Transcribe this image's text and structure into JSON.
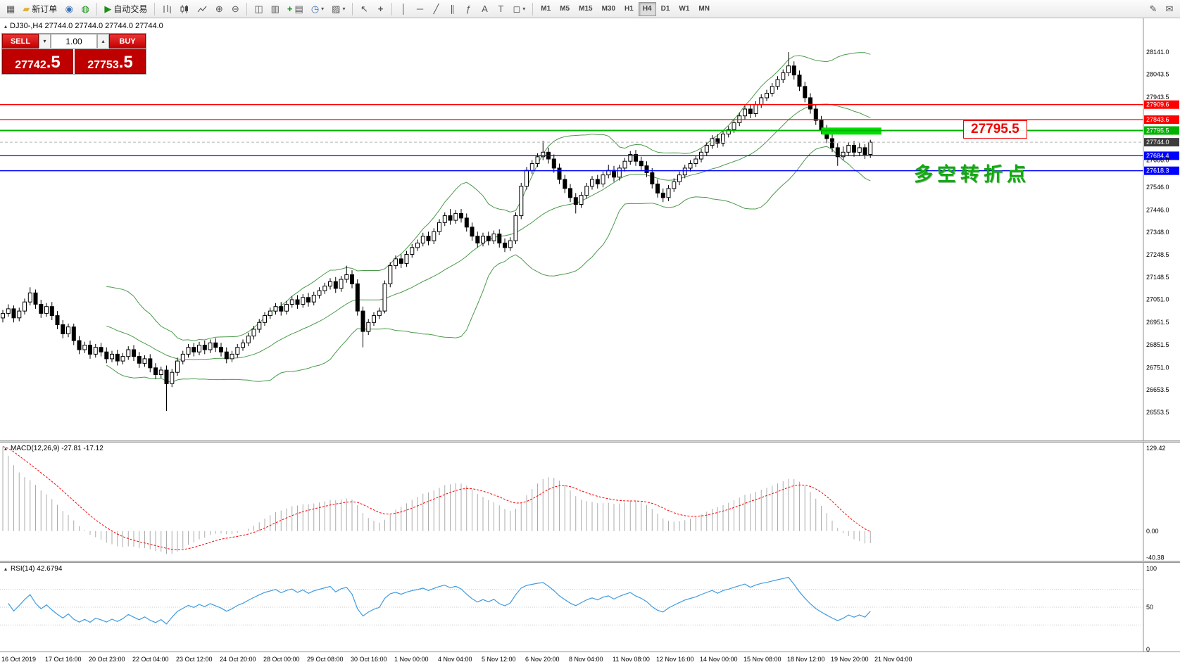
{
  "toolbar": {
    "new_order_label": "新订单",
    "auto_trading_label": "自动交易",
    "timeframes": [
      "M1",
      "M5",
      "M15",
      "M30",
      "H1",
      "H4",
      "D1",
      "W1",
      "MN"
    ],
    "active_timeframe": "H4",
    "text_tool_label": "A",
    "label_tool_label": "T",
    "fibo_tool_label": "ƒ"
  },
  "symbol_header": {
    "text": "DJ30-,H4  27744.0 27744.0 27744.0 27744.0"
  },
  "trade_panel": {
    "sell_label": "SELL",
    "buy_label": "BUY",
    "volume": "1.00",
    "sell_price_main": "27742",
    "sell_price_frac": ".5",
    "buy_price_main": "27753",
    "buy_price_frac": ".5"
  },
  "annotations": {
    "callout_price": "27795.5",
    "turning_point_label": "多空转折点"
  },
  "indicators": {
    "macd_label": "MACD(12,26,9) -27.81 -17.12",
    "rsi_label": "RSI(14) 42.6794"
  },
  "axes": {
    "main_price_labels": [
      {
        "text": "28141.0",
        "kind": "plain"
      },
      {
        "text": "28043.5",
        "kind": "plain"
      },
      {
        "text": "27943.5",
        "kind": "plain"
      },
      {
        "text": "27909.6",
        "kind": "red"
      },
      {
        "text": "27843.6",
        "kind": "red"
      },
      {
        "text": "27795.5",
        "kind": "green"
      },
      {
        "text": "27744.0",
        "kind": "current"
      },
      {
        "text": "27684.4",
        "kind": "blue"
      },
      {
        "text": "27666.0",
        "kind": "plain"
      },
      {
        "text": "27618.3",
        "kind": "blue"
      },
      {
        "text": "27546.0",
        "kind": "plain"
      },
      {
        "text": "27446.0",
        "kind": "plain"
      },
      {
        "text": "27348.0",
        "kind": "plain"
      },
      {
        "text": "27248.5",
        "kind": "plain"
      },
      {
        "text": "27148.5",
        "kind": "plain"
      },
      {
        "text": "27051.0",
        "kind": "plain"
      },
      {
        "text": "26951.5",
        "kind": "plain"
      },
      {
        "text": "26851.5",
        "kind": "plain"
      },
      {
        "text": "26751.0",
        "kind": "plain"
      },
      {
        "text": "26653.5",
        "kind": "plain"
      },
      {
        "text": "26553.5",
        "kind": "plain"
      }
    ],
    "macd_labels": [
      "129.42",
      "0.00",
      "-40.38"
    ],
    "rsi_labels": [
      "100",
      "50",
      "0"
    ],
    "time_labels": [
      "16 Oct 2019",
      "17 Oct 16:00",
      "20 Oct 23:00",
      "22 Oct 04:00",
      "23 Oct 12:00",
      "24 Oct 20:00",
      "28 Oct 00:00",
      "29 Oct 08:00",
      "30 Oct 16:00",
      "1 Nov 00:00",
      "4 Nov 04:00",
      "5 Nov 12:00",
      "6 Nov 20:00",
      "8 Nov 04:00",
      "11 Nov 08:00",
      "12 Nov 16:00",
      "14 Nov 00:00",
      "15 Nov 08:00",
      "18 Nov 12:00",
      "19 Nov 20:00",
      "21 Nov 04:00"
    ]
  },
  "chart_data": {
    "type": "candlestick",
    "symbol": "DJ30-",
    "timeframe": "H4",
    "current_price": 27744.0,
    "price_range": [
      26430,
      28290
    ],
    "colors": {
      "bull": "#ffffff",
      "bear": "#000000",
      "outline": "#000000",
      "bollinger": "#4a9a4a",
      "macd_hist": "#ababab",
      "macd_signal": "#ff0000",
      "rsi_line": "#3f9be0",
      "axis_current_bg": "#3c3c3c"
    },
    "bollinger": {
      "period": 20,
      "deviation": 2,
      "color": "#4a9a4a"
    },
    "macd": {
      "params": [
        12,
        26,
        9
      ],
      "value": -27.81,
      "signal": -17.12,
      "range": [
        -45,
        134
      ]
    },
    "rsi": {
      "period": 14,
      "value": 42.6794,
      "range": [
        0,
        100
      ],
      "levels": [
        30,
        50,
        70
      ]
    },
    "hlines": [
      {
        "price": 27909.6,
        "color": "#ff0000",
        "width": 1.3
      },
      {
        "price": 27843.6,
        "color": "#ff0000",
        "width": 1.3
      },
      {
        "price": 27795.5,
        "color": "#00b300",
        "width": 2
      },
      {
        "price": 27744.0,
        "color": "#b4b4b4",
        "width": 1,
        "dash": "4,3"
      },
      {
        "price": 27684.4,
        "color": "#0000ff",
        "width": 1.3
      },
      {
        "price": 27618.3,
        "color": "#0000ff",
        "width": 1.3
      }
    ],
    "highlight_rect": {
      "price": 27793,
      "bar_start": 150,
      "bar_end": 161,
      "thickness": 10,
      "color": "#00e000"
    },
    "candles_ohlc": [
      [
        26970,
        27005,
        26950,
        26990
      ],
      [
        26990,
        27030,
        26975,
        27010
      ],
      [
        27010,
        27025,
        26950,
        26970
      ],
      [
        26970,
        27015,
        26955,
        27000
      ],
      [
        27000,
        27055,
        26985,
        27040
      ],
      [
        27040,
        27105,
        27025,
        27080
      ],
      [
        27080,
        27095,
        27010,
        27030
      ],
      [
        27030,
        27050,
        26970,
        26990
      ],
      [
        26990,
        27035,
        26975,
        27020
      ],
      [
        27020,
        27040,
        26960,
        26980
      ],
      [
        26980,
        27000,
        26920,
        26940
      ],
      [
        26940,
        26960,
        26880,
        26900
      ],
      [
        26900,
        26945,
        26885,
        26930
      ],
      [
        26930,
        26945,
        26850,
        26870
      ],
      [
        26870,
        26890,
        26810,
        26830
      ],
      [
        26830,
        26865,
        26815,
        26850
      ],
      [
        26850,
        26870,
        26790,
        26810
      ],
      [
        26810,
        26855,
        26795,
        26840
      ],
      [
        26840,
        26860,
        26800,
        26820
      ],
      [
        26820,
        26840,
        26770,
        26790
      ],
      [
        26790,
        26825,
        26775,
        26810
      ],
      [
        26810,
        26830,
        26760,
        26780
      ],
      [
        26780,
        26815,
        26765,
        26800
      ],
      [
        26800,
        26845,
        26785,
        26830
      ],
      [
        26830,
        26850,
        26780,
        26800
      ],
      [
        26800,
        26820,
        26750,
        26770
      ],
      [
        26770,
        26805,
        26755,
        26790
      ],
      [
        26790,
        26810,
        26730,
        26750
      ],
      [
        26750,
        26770,
        26700,
        26720
      ],
      [
        26720,
        26755,
        26705,
        26740
      ],
      [
        26740,
        26760,
        26560,
        26680
      ],
      [
        26680,
        26745,
        26665,
        26730
      ],
      [
        26730,
        26795,
        26715,
        26780
      ],
      [
        26780,
        26825,
        26765,
        26810
      ],
      [
        26810,
        26855,
        26795,
        26840
      ],
      [
        26840,
        26860,
        26800,
        26820
      ],
      [
        26820,
        26865,
        26805,
        26850
      ],
      [
        26850,
        26870,
        26810,
        26830
      ],
      [
        26830,
        26875,
        26815,
        26860
      ],
      [
        26860,
        26880,
        26820,
        26840
      ],
      [
        26840,
        26860,
        26800,
        26820
      ],
      [
        26820,
        26840,
        26770,
        26790
      ],
      [
        26790,
        26825,
        26775,
        26810
      ],
      [
        26810,
        26855,
        26795,
        26840
      ],
      [
        26840,
        26875,
        26825,
        26860
      ],
      [
        26860,
        26905,
        26845,
        26890
      ],
      [
        26890,
        26935,
        26875,
        26920
      ],
      [
        26920,
        26965,
        26905,
        26950
      ],
      [
        26950,
        26995,
        26935,
        26980
      ],
      [
        26980,
        27015,
        26965,
        27000
      ],
      [
        27000,
        27035,
        26985,
        27020
      ],
      [
        27020,
        27040,
        26980,
        27000
      ],
      [
        27000,
        27045,
        26985,
        27030
      ],
      [
        27030,
        27065,
        27015,
        27050
      ],
      [
        27050,
        27070,
        27010,
        27030
      ],
      [
        27030,
        27075,
        27015,
        27060
      ],
      [
        27060,
        27080,
        27020,
        27040
      ],
      [
        27040,
        27085,
        27025,
        27070
      ],
      [
        27070,
        27105,
        27055,
        27090
      ],
      [
        27090,
        27125,
        27075,
        27110
      ],
      [
        27110,
        27145,
        27095,
        27130
      ],
      [
        27130,
        27150,
        27080,
        27100
      ],
      [
        27100,
        27155,
        27085,
        27140
      ],
      [
        27140,
        27200,
        27125,
        27160
      ],
      [
        27160,
        27180,
        27100,
        27120
      ],
      [
        27120,
        27140,
        26980,
        27000
      ],
      [
        27000,
        27020,
        26840,
        26910
      ],
      [
        26910,
        26965,
        26895,
        26950
      ],
      [
        26950,
        26995,
        26935,
        26980
      ],
      [
        26980,
        27015,
        26965,
        27000
      ],
      [
        27000,
        27135,
        26990,
        27120
      ],
      [
        27120,
        27215,
        27105,
        27200
      ],
      [
        27200,
        27245,
        27185,
        27230
      ],
      [
        27230,
        27250,
        27190,
        27210
      ],
      [
        27210,
        27265,
        27195,
        27250
      ],
      [
        27250,
        27295,
        27235,
        27280
      ],
      [
        27280,
        27315,
        27265,
        27300
      ],
      [
        27300,
        27345,
        27285,
        27330
      ],
      [
        27330,
        27350,
        27290,
        27310
      ],
      [
        27310,
        27365,
        27295,
        27350
      ],
      [
        27350,
        27405,
        27335,
        27390
      ],
      [
        27390,
        27435,
        27375,
        27420
      ],
      [
        27420,
        27450,
        27380,
        27400
      ],
      [
        27400,
        27445,
        27385,
        27430
      ],
      [
        27430,
        27450,
        27390,
        27410
      ],
      [
        27410,
        27430,
        27350,
        27370
      ],
      [
        27370,
        27390,
        27310,
        27330
      ],
      [
        27330,
        27350,
        27280,
        27300
      ],
      [
        27300,
        27345,
        27285,
        27330
      ],
      [
        27330,
        27350,
        27290,
        27310
      ],
      [
        27310,
        27355,
        27295,
        27340
      ],
      [
        27340,
        27360,
        27280,
        27300
      ],
      [
        27300,
        27320,
        27260,
        27280
      ],
      [
        27280,
        27325,
        27265,
        27310
      ],
      [
        27310,
        27435,
        27295,
        27420
      ],
      [
        27420,
        27565,
        27405,
        27550
      ],
      [
        27550,
        27635,
        27535,
        27620
      ],
      [
        27620,
        27665,
        27605,
        27650
      ],
      [
        27650,
        27695,
        27635,
        27680
      ],
      [
        27680,
        27750,
        27665,
        27700
      ],
      [
        27700,
        27720,
        27650,
        27670
      ],
      [
        27670,
        27690,
        27610,
        27630
      ],
      [
        27630,
        27650,
        27560,
        27580
      ],
      [
        27580,
        27600,
        27520,
        27540
      ],
      [
        27540,
        27560,
        27480,
        27500
      ],
      [
        27500,
        27520,
        27430,
        27470
      ],
      [
        27470,
        27525,
        27455,
        27510
      ],
      [
        27510,
        27565,
        27495,
        27550
      ],
      [
        27550,
        27595,
        27535,
        27580
      ],
      [
        27580,
        27600,
        27540,
        27560
      ],
      [
        27560,
        27615,
        27545,
        27600
      ],
      [
        27600,
        27645,
        27585,
        27620
      ],
      [
        27620,
        27640,
        27570,
        27590
      ],
      [
        27590,
        27645,
        27575,
        27630
      ],
      [
        27630,
        27675,
        27615,
        27660
      ],
      [
        27660,
        27705,
        27645,
        27690
      ],
      [
        27690,
        27710,
        27640,
        27660
      ],
      [
        27660,
        27680,
        27620,
        27640
      ],
      [
        27640,
        27660,
        27590,
        27610
      ],
      [
        27610,
        27630,
        27540,
        27560
      ],
      [
        27560,
        27580,
        27500,
        27520
      ],
      [
        27520,
        27540,
        27480,
        27500
      ],
      [
        27500,
        27555,
        27485,
        27540
      ],
      [
        27540,
        27585,
        27525,
        27570
      ],
      [
        27570,
        27615,
        27555,
        27600
      ],
      [
        27600,
        27645,
        27585,
        27630
      ],
      [
        27630,
        27665,
        27615,
        27650
      ],
      [
        27650,
        27685,
        27635,
        27670
      ],
      [
        27670,
        27715,
        27655,
        27700
      ],
      [
        27700,
        27745,
        27685,
        27730
      ],
      [
        27730,
        27775,
        27715,
        27760
      ],
      [
        27760,
        27780,
        27720,
        27740
      ],
      [
        27740,
        27795,
        27725,
        27780
      ],
      [
        27780,
        27815,
        27765,
        27800
      ],
      [
        27800,
        27845,
        27785,
        27830
      ],
      [
        27830,
        27875,
        27815,
        27860
      ],
      [
        27860,
        27905,
        27845,
        27890
      ],
      [
        27890,
        27910,
        27850,
        27870
      ],
      [
        27870,
        27925,
        27855,
        27910
      ],
      [
        27910,
        27955,
        27895,
        27940
      ],
      [
        27940,
        27975,
        27925,
        27960
      ],
      [
        27960,
        28005,
        27945,
        27990
      ],
      [
        27990,
        28035,
        27975,
        28020
      ],
      [
        28020,
        28065,
        28005,
        28050
      ],
      [
        28050,
        28141,
        28035,
        28080
      ],
      [
        28080,
        28100,
        28020,
        28040
      ],
      [
        28040,
        28060,
        27970,
        27990
      ],
      [
        27990,
        28010,
        27920,
        27940
      ],
      [
        27940,
        27960,
        27870,
        27890
      ],
      [
        27890,
        27910,
        27820,
        27840
      ],
      [
        27840,
        27860,
        27780,
        27800
      ],
      [
        27800,
        27820,
        27740,
        27760
      ],
      [
        27760,
        27780,
        27700,
        27720
      ],
      [
        27720,
        27740,
        27640,
        27680
      ],
      [
        27680,
        27725,
        27665,
        27700
      ],
      [
        27700,
        27745,
        27685,
        27730
      ],
      [
        27730,
        27750,
        27680,
        27700
      ],
      [
        27700,
        27740,
        27685,
        27720
      ],
      [
        27720,
        27735,
        27670,
        27690
      ],
      [
        27690,
        27755,
        27675,
        27744
      ]
    ]
  }
}
